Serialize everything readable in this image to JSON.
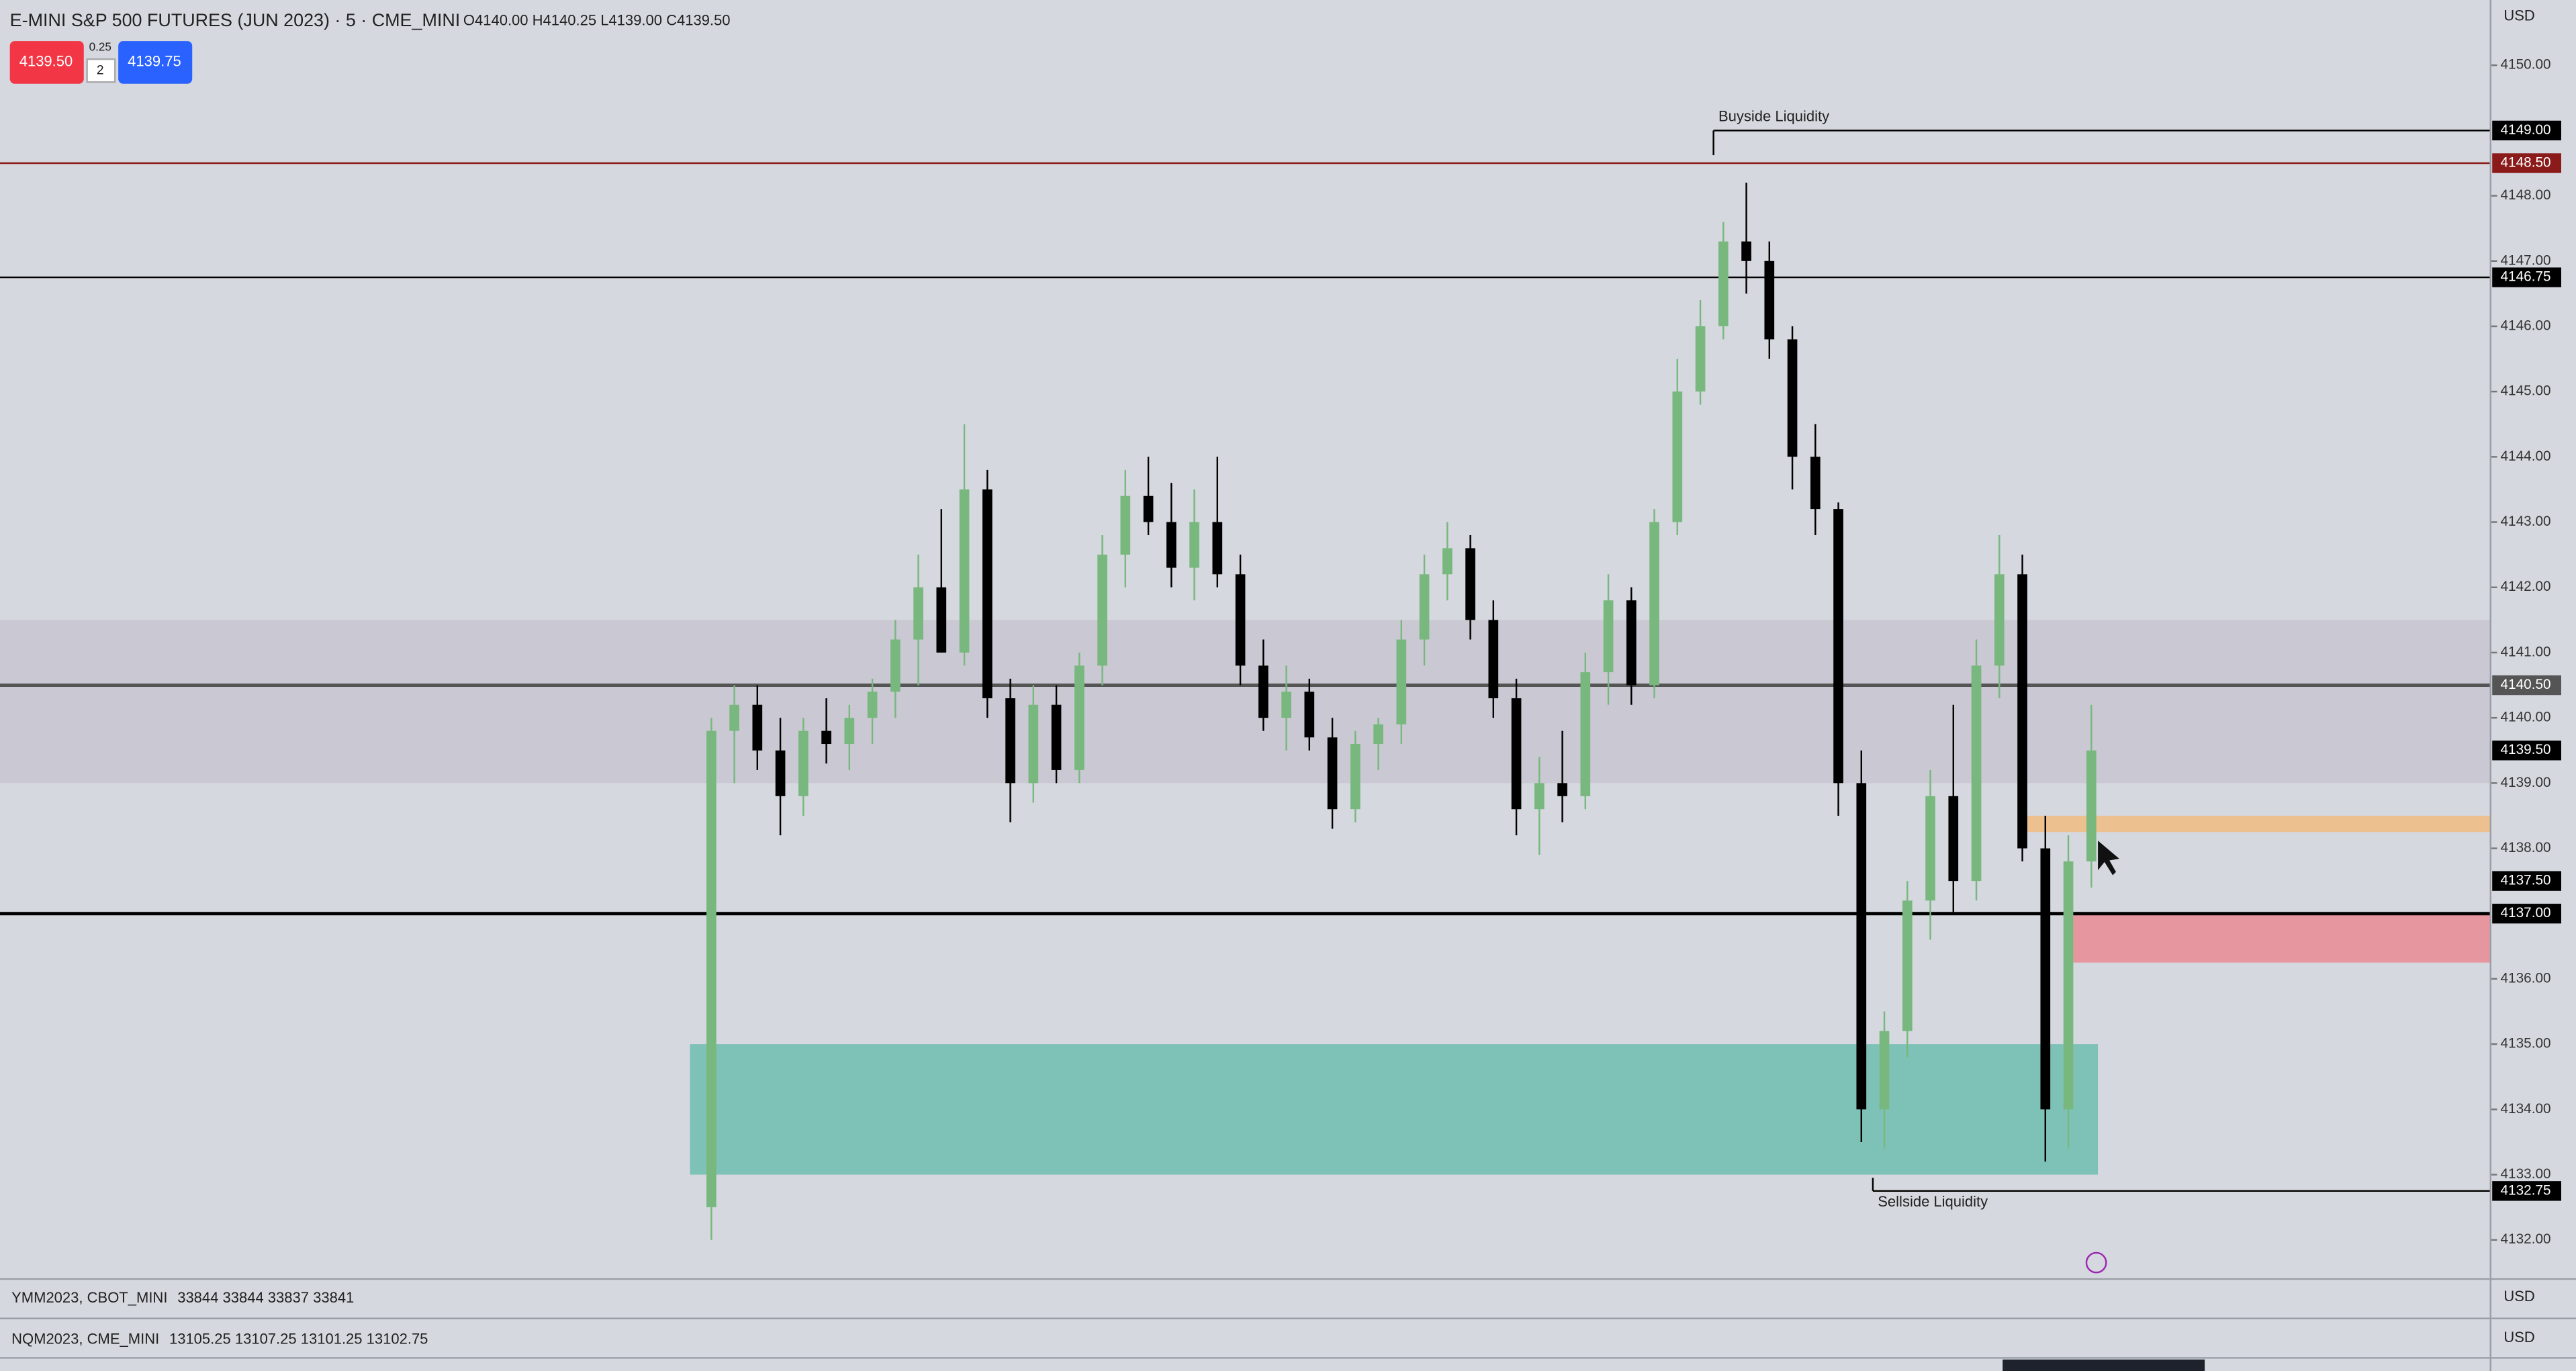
{
  "ui": {
    "symbol": "E-MINI S&P 500 FUTURES (JUN 2023) · 5 · CME_MINI",
    "ohlc": "O4140.00 H4140.25 L4139.00 C4139.50",
    "sell_button": "4139.50",
    "spread": "0.25",
    "quantity": "2",
    "buy_button": "4139.75",
    "currency": "USD",
    "panes": [
      {
        "symbol": "YMM2023, CBOT_MINI",
        "values": "33844 33844 33837 33841"
      },
      {
        "symbol": "NQM2023, CME_MINI",
        "values": "13105.25 13107.25 13101.25 13102.75"
      }
    ]
  },
  "chart_data": {
    "type": "candlestick",
    "up_color": "#78b87e",
    "down_color": "#000000",
    "ylim": [
      4131.4,
      4151.0
    ],
    "yticks": [
      {
        "value": 4132,
        "label": "4132.00"
      },
      {
        "value": 4133,
        "label": "4133.00"
      },
      {
        "value": 4134,
        "label": "4134.00"
      },
      {
        "value": 4135,
        "label": "4135.00"
      },
      {
        "value": 4136,
        "label": "4136.00"
      },
      {
        "value": 4138,
        "label": "4138.00"
      },
      {
        "value": 4139,
        "label": "4139.00"
      },
      {
        "value": 4140,
        "label": "4140.00"
      },
      {
        "value": 4141,
        "label": "4141.00"
      },
      {
        "value": 4142,
        "label": "4142.00"
      },
      {
        "value": 4143,
        "label": "4143.00"
      },
      {
        "value": 4144,
        "label": "4144.00"
      },
      {
        "value": 4145,
        "label": "4145.00"
      },
      {
        "value": 4146,
        "label": "4146.00"
      },
      {
        "value": 4147,
        "label": "4147.00"
      },
      {
        "value": 4148,
        "label": "4148.00"
      },
      {
        "value": 4150,
        "label": "4150.00"
      }
    ],
    "candles": [
      [
        4132.5,
        4140,
        4132,
        4139.8
      ],
      [
        4139.8,
        4140.5,
        4139,
        4140.2
      ],
      [
        4140.2,
        4140.5,
        4139.2,
        4139.5
      ],
      [
        4139.5,
        4140,
        4138.2,
        4138.8
      ],
      [
        4138.8,
        4140,
        4138.5,
        4139.8
      ],
      [
        4139.8,
        4140.3,
        4139.3,
        4139.6
      ],
      [
        4139.6,
        4140.2,
        4139.2,
        4140
      ],
      [
        4140,
        4140.6,
        4139.6,
        4140.4
      ],
      [
        4140.4,
        4141.5,
        4140,
        4141.2
      ],
      [
        4141.2,
        4142.5,
        4140.5,
        4142
      ],
      [
        4142,
        4143.2,
        4141,
        4141
      ],
      [
        4141,
        4144.5,
        4140.8,
        4143.5
      ],
      [
        4143.5,
        4143.8,
        4140,
        4140.3
      ],
      [
        4140.3,
        4140.6,
        4138.4,
        4139
      ],
      [
        4139,
        4140.5,
        4138.7,
        4140.2
      ],
      [
        4140.2,
        4140.5,
        4139,
        4139.2
      ],
      [
        4139.2,
        4141,
        4139,
        4140.8
      ],
      [
        4140.8,
        4142.8,
        4140.5,
        4142.5
      ],
      [
        4142.5,
        4143.8,
        4142,
        4143.4
      ],
      [
        4143.4,
        4144,
        4142.8,
        4143
      ],
      [
        4143,
        4143.6,
        4142,
        4142.3
      ],
      [
        4142.3,
        4143.5,
        4141.8,
        4143
      ],
      [
        4143,
        4144,
        4142,
        4142.2
      ],
      [
        4142.2,
        4142.5,
        4140.5,
        4140.8
      ],
      [
        4140.8,
        4141.2,
        4139.8,
        4140
      ],
      [
        4140,
        4140.8,
        4139.5,
        4140.4
      ],
      [
        4140.4,
        4140.6,
        4139.5,
        4139.7
      ],
      [
        4139.7,
        4140,
        4138.3,
        4138.6
      ],
      [
        4138.6,
        4139.8,
        4138.4,
        4139.6
      ],
      [
        4139.6,
        4140,
        4139.2,
        4139.9
      ],
      [
        4139.9,
        4141.5,
        4139.6,
        4141.2
      ],
      [
        4141.2,
        4142.5,
        4140.8,
        4142.2
      ],
      [
        4142.2,
        4143,
        4141.8,
        4142.6
      ],
      [
        4142.6,
        4142.8,
        4141.2,
        4141.5
      ],
      [
        4141.5,
        4141.8,
        4140,
        4140.3
      ],
      [
        4140.3,
        4140.6,
        4138.2,
        4138.6
      ],
      [
        4138.6,
        4139.4,
        4137.9,
        4139
      ],
      [
        4139,
        4139.8,
        4138.4,
        4138.8
      ],
      [
        4138.8,
        4141,
        4138.6,
        4140.7
      ],
      [
        4140.7,
        4142.2,
        4140.2,
        4141.8
      ],
      [
        4141.8,
        4142,
        4140.2,
        4140.5
      ],
      [
        4140.5,
        4143.2,
        4140.3,
        4143
      ],
      [
        4143,
        4145.5,
        4142.8,
        4145
      ],
      [
        4145,
        4146.4,
        4144.8,
        4146
      ],
      [
        4146,
        4147.6,
        4145.8,
        4147.3
      ],
      [
        4147.3,
        4148.2,
        4146.5,
        4147
      ],
      [
        4147,
        4147.3,
        4145.5,
        4145.8
      ],
      [
        4145.8,
        4146,
        4143.5,
        4144
      ],
      [
        4144,
        4144.5,
        4142.8,
        4143.2
      ],
      [
        4143.2,
        4143.3,
        4138.5,
        4139
      ],
      [
        4139,
        4139.5,
        4133.5,
        4134
      ],
      [
        4134,
        4135.5,
        4133.4,
        4135.2
      ],
      [
        4135.2,
        4137.5,
        4134.8,
        4137.2
      ],
      [
        4137.2,
        4139.2,
        4136.6,
        4138.8
      ],
      [
        4138.8,
        4140.2,
        4137,
        4137.5
      ],
      [
        4137.5,
        4141.2,
        4137.2,
        4140.8
      ],
      [
        4140.8,
        4142.8,
        4140.3,
        4142.2
      ],
      [
        4142.2,
        4142.5,
        4137.8,
        4138
      ],
      [
        4138,
        4138.5,
        4133.2,
        4134
      ],
      [
        4134,
        4138.2,
        4133.4,
        4137.8
      ],
      [
        4137.8,
        4140.2,
        4137.4,
        4139.5
      ]
    ],
    "zones": [
      {
        "from": 4141.5,
        "to": 4139,
        "color": "#c9c8d2"
      },
      {
        "from": 4135,
        "to": 4133,
        "color": "#79c0b4"
      },
      {
        "from": 4138.5,
        "to": 4138.25,
        "color": "#edbf8a"
      },
      {
        "from": 4137,
        "to": 4136.25,
        "color": "#e6929a"
      }
    ],
    "levels": [
      {
        "value": 4149,
        "label": "4149.00",
        "color": "#000000",
        "line": true,
        "note": "Buyside Liquidity"
      },
      {
        "value": 4148.5,
        "label": "4148.50",
        "color": "#8b1a1a",
        "line": true
      },
      {
        "value": 4146.75,
        "label": "4146.75",
        "color": "#000000",
        "line": true
      },
      {
        "value": 4140.5,
        "label": "4140.50",
        "color": "#555555",
        "line": true
      },
      {
        "value": 4139.5,
        "label": "4139.50",
        "color": "#000000",
        "line": false
      },
      {
        "value": 4137.5,
        "label": "4137.50",
        "color": "#000000",
        "line": false
      },
      {
        "value": 4137,
        "label": "4137.00",
        "color": "#000000",
        "line": true
      },
      {
        "value": 4132.75,
        "label": "4132.75",
        "color": "#000000",
        "line": true,
        "note": "Sellside Liquidity"
      }
    ]
  }
}
